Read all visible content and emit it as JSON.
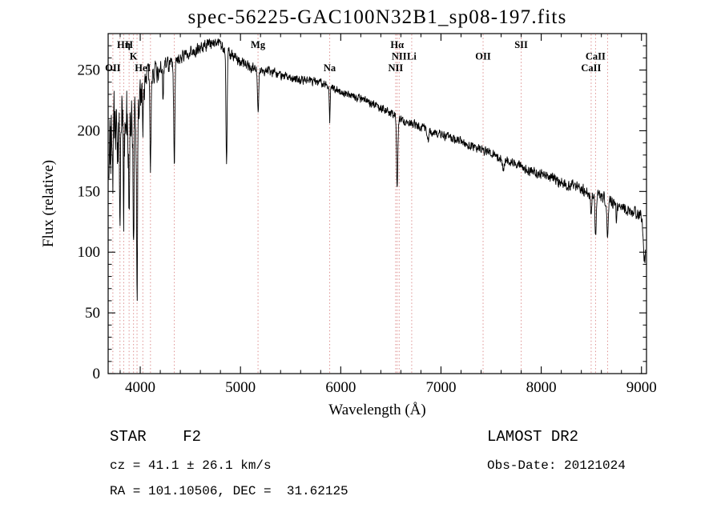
{
  "title": "spec-56225-GAC100N32B1_sp08-197.fits",
  "chart_data": {
    "type": "line",
    "title": "spec-56225-GAC100N32B1_sp08-197.fits",
    "xlabel": "Wavelength (Å)",
    "ylabel": "Flux (relative)",
    "xlim": [
      3680,
      9050
    ],
    "ylim": [
      0,
      280
    ],
    "xticks": [
      4000,
      5000,
      6000,
      7000,
      8000,
      9000
    ],
    "yticks": [
      0,
      50,
      100,
      150,
      200,
      250
    ],
    "x_minor": 200,
    "y_minor": 10,
    "colors": {
      "marker": "#dd9090",
      "line": "#000000"
    },
    "marker_lines": [
      3727,
      3798,
      3835,
      3889,
      3933,
      3968,
      4026,
      4102,
      4340,
      5175,
      5890,
      6548,
      6563,
      6583,
      6708,
      7420,
      7800,
      8498,
      8542,
      8662
    ],
    "line_labels": [
      {
        "wavelength": 3835,
        "text": "Hη",
        "row": 1
      },
      {
        "wavelength": 3889,
        "text": "H",
        "row": 1
      },
      {
        "wavelength": 3933,
        "text": "K",
        "row": 2
      },
      {
        "wavelength": 3727,
        "text": "OII",
        "row": 3
      },
      {
        "wavelength": 4026,
        "text": "HeI",
        "row": 3
      },
      {
        "wavelength": 5175,
        "text": "Mg",
        "row": 1
      },
      {
        "wavelength": 5890,
        "text": "Na",
        "row": 3
      },
      {
        "wavelength": 6563,
        "text": "Hα",
        "row": 1
      },
      {
        "wavelength": 6583,
        "text": "NII",
        "row": 2
      },
      {
        "wavelength": 6708,
        "text": "Li",
        "row": 2
      },
      {
        "wavelength": 6548,
        "text": "NII",
        "row": 3
      },
      {
        "wavelength": 7420,
        "text": "OII",
        "row": 2
      },
      {
        "wavelength": 7800,
        "text": "SII",
        "row": 1
      },
      {
        "wavelength": 8542,
        "text": "CaII",
        "row": 2
      },
      {
        "wavelength": 8498,
        "text": "CaII",
        "row": 3
      }
    ],
    "continuum": [
      [
        3680,
        172
      ],
      [
        3720,
        192
      ],
      [
        3760,
        200
      ],
      [
        3800,
        205
      ],
      [
        3850,
        210
      ],
      [
        3900,
        213
      ],
      [
        3950,
        218
      ],
      [
        4000,
        228
      ],
      [
        4050,
        238
      ],
      [
        4100,
        244
      ],
      [
        4150,
        248
      ],
      [
        4200,
        251
      ],
      [
        4250,
        253
      ],
      [
        4300,
        255
      ],
      [
        4350,
        257
      ],
      [
        4400,
        260
      ],
      [
        4500,
        265
      ],
      [
        4600,
        269
      ],
      [
        4700,
        271
      ],
      [
        4750,
        272
      ],
      [
        4800,
        270
      ],
      [
        4850,
        267
      ],
      [
        4900,
        263
      ],
      [
        4950,
        260
      ],
      [
        5000,
        257
      ],
      [
        5100,
        252
      ],
      [
        5200,
        249
      ],
      [
        5300,
        248
      ],
      [
        5400,
        246
      ],
      [
        5500,
        244
      ],
      [
        5600,
        242
      ],
      [
        5700,
        241
      ],
      [
        5800,
        239
      ],
      [
        5900,
        236
      ],
      [
        6000,
        232
      ],
      [
        6100,
        229
      ],
      [
        6200,
        226
      ],
      [
        6300,
        223
      ],
      [
        6400,
        219
      ],
      [
        6500,
        214
      ],
      [
        6600,
        209
      ],
      [
        6700,
        206
      ],
      [
        6800,
        203
      ],
      [
        6900,
        200
      ],
      [
        7000,
        197
      ],
      [
        7100,
        194
      ],
      [
        7200,
        191
      ],
      [
        7300,
        188
      ],
      [
        7400,
        185
      ],
      [
        7500,
        181
      ],
      [
        7600,
        178
      ],
      [
        7700,
        174
      ],
      [
        7800,
        171
      ],
      [
        7900,
        167
      ],
      [
        8000,
        164
      ],
      [
        8100,
        161
      ],
      [
        8200,
        158
      ],
      [
        8300,
        155
      ],
      [
        8400,
        152
      ],
      [
        8500,
        148
      ],
      [
        8600,
        145
      ],
      [
        8700,
        142
      ],
      [
        8800,
        138
      ],
      [
        8900,
        134
      ],
      [
        9000,
        131
      ],
      [
        9050,
        128
      ]
    ],
    "absorption_lines": [
      {
        "c": 3727,
        "w": 4,
        "d": 40
      },
      {
        "c": 3770,
        "w": 4,
        "d": 45
      },
      {
        "c": 3798,
        "w": 4,
        "d": 55
      },
      {
        "c": 3835,
        "w": 5,
        "d": 80
      },
      {
        "c": 3889,
        "w": 5,
        "d": 90
      },
      {
        "c": 3933,
        "w": 5,
        "d": 120
      },
      {
        "c": 3968,
        "w": 5,
        "d": 165
      },
      {
        "c": 4026,
        "w": 4,
        "d": 40
      },
      {
        "c": 4102,
        "w": 6,
        "d": 75
      },
      {
        "c": 4227,
        "w": 4,
        "d": 28
      },
      {
        "c": 4340,
        "w": 6,
        "d": 85
      },
      {
        "c": 4861,
        "w": 6,
        "d": 90
      },
      {
        "c": 5175,
        "w": 6,
        "d": 35
      },
      {
        "c": 5890,
        "w": 5,
        "d": 28
      },
      {
        "c": 6563,
        "w": 6,
        "d": 60
      },
      {
        "c": 6870,
        "w": 8,
        "d": 10
      },
      {
        "c": 7620,
        "w": 9,
        "d": 10
      },
      {
        "c": 8498,
        "w": 5,
        "d": 20
      },
      {
        "c": 8542,
        "w": 6,
        "d": 35
      },
      {
        "c": 8662,
        "w": 6,
        "d": 30
      },
      {
        "c": 8750,
        "w": 4,
        "d": 15
      },
      {
        "c": 9030,
        "w": 12,
        "d": 35
      }
    ],
    "noise_amp": [
      [
        3680,
        28
      ],
      [
        3780,
        30
      ],
      [
        3880,
        22
      ],
      [
        3960,
        16
      ],
      [
        4020,
        12
      ],
      [
        4120,
        9
      ],
      [
        4250,
        6
      ],
      [
        4400,
        5
      ],
      [
        4700,
        4.5
      ],
      [
        5000,
        4
      ],
      [
        5500,
        3.5
      ],
      [
        6000,
        3.2
      ],
      [
        6500,
        3
      ],
      [
        7000,
        3.2
      ],
      [
        7500,
        3.4
      ],
      [
        8000,
        3.8
      ],
      [
        8400,
        4.2
      ],
      [
        8800,
        4.6
      ],
      [
        9050,
        5
      ]
    ]
  },
  "footer": {
    "class_label": "STAR    F2",
    "survey": "LAMOST DR2",
    "cz": "cz = 41.1 ± 26.1 km/s",
    "obs_date": "Obs-Date: 20121024",
    "coords": "RA = 101.10506, DEC =  31.62125"
  }
}
